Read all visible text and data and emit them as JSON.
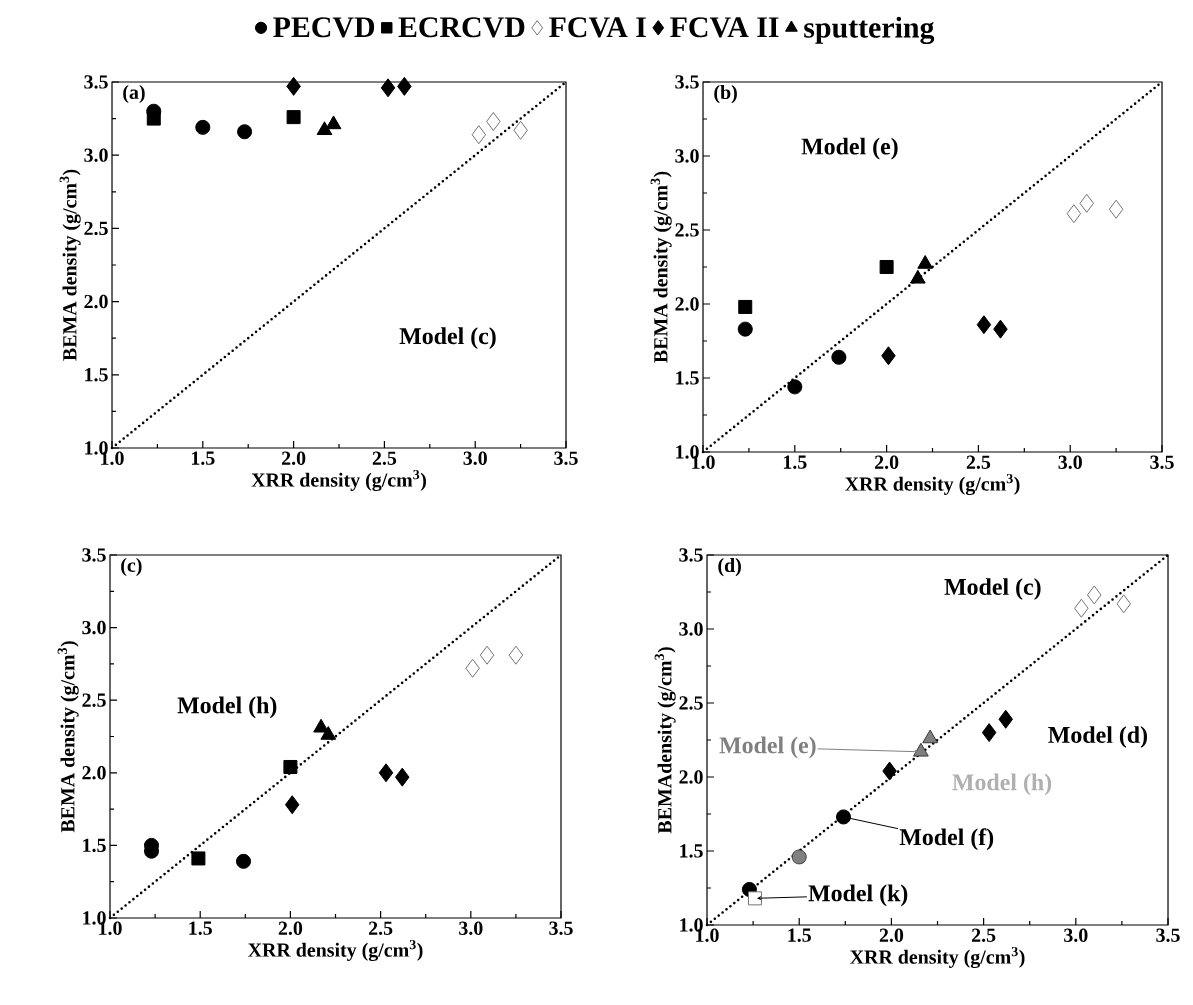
{
  "chart_data": [
    {
      "type": "scatter",
      "title": "(a)",
      "xlabel": "XRR density (g/cm$^{3}$)",
      "ylabel": "BEMA density (g/cm$^{3}$)",
      "xlim": [
        1.0,
        3.5
      ],
      "ylim": [
        1.0,
        3.5
      ],
      "xticks": [
        {
          "value": 1.0,
          "label": "1.0"
        },
        {
          "value": 1.5,
          "label": "1.5"
        },
        {
          "value": 2.0,
          "label": "2.0"
        },
        {
          "value": 2.5,
          "label": "2.5"
        },
        {
          "value": 3.0,
          "label": "3.0"
        },
        {
          "value": 3.5,
          "label": "3.5"
        }
      ],
      "yticks": [
        {
          "value": 1.0,
          "label": "1.0"
        },
        {
          "value": 1.5,
          "label": "1.5"
        },
        {
          "value": 2.0,
          "label": "2.0"
        },
        {
          "value": 2.5,
          "label": "2.5"
        },
        {
          "value": 3.0,
          "label": "3.0"
        },
        {
          "value": 3.5,
          "label": "3.5"
        }
      ],
      "legend": "top",
      "grid": false,
      "series": [
        {
          "name": "PECVD",
          "marker": "circle",
          "color": "#000000",
          "x": [
            1.23,
            1.5,
            1.73
          ],
          "values": [
            3.3,
            3.19,
            3.16
          ]
        },
        {
          "name": "ECRCVD",
          "marker": "square",
          "color": "#000000",
          "x": [
            1.23,
            2.0
          ],
          "values": [
            3.25,
            3.26
          ]
        },
        {
          "name": "FCVA I",
          "marker": "diamond",
          "color": "#ffffff",
          "x": [
            3.02,
            3.1,
            3.25
          ],
          "values": [
            3.14,
            3.23,
            3.17
          ]
        },
        {
          "name": "FCVA II",
          "marker": "diamond",
          "color": "#000000",
          "x": [
            2.0,
            2.52,
            2.61
          ],
          "values": [
            3.47,
            3.46,
            3.47
          ]
        },
        {
          "name": "sputtering",
          "marker": "triangle",
          "color": "#000000",
          "x": [
            2.17,
            2.22
          ],
          "values": [
            3.17,
            3.21
          ]
        },
        {
          "type": "line",
          "line_style": "dotted",
          "color": "#000000",
          "x": [
            1.0,
            3.5
          ],
          "values": [
            1.0,
            3.5
          ]
        }
      ],
      "annotations": [
        "Model (c)"
      ]
    },
    {
      "type": "scatter",
      "title": "(b)",
      "xlabel": "XRR density (g/cm$^{3}$)",
      "ylabel": "BEMA density (g/cm$^{3}$)",
      "xlim": [
        1.0,
        3.5
      ],
      "ylim": [
        1.0,
        3.5
      ],
      "xticks": [
        {
          "value": 1.0,
          "label": "1.0"
        },
        {
          "value": 1.5,
          "label": "1.5"
        },
        {
          "value": 2.0,
          "label": "2.0"
        },
        {
          "value": 2.5,
          "label": "2.5"
        },
        {
          "value": 3.0,
          "label": "3.0"
        },
        {
          "value": 3.5,
          "label": "3.5"
        }
      ],
      "yticks": [
        {
          "value": 1.0,
          "label": "1.0"
        },
        {
          "value": 1.5,
          "label": "1.5"
        },
        {
          "value": 2.0,
          "label": "2.0"
        },
        {
          "value": 2.5,
          "label": "2.5"
        },
        {
          "value": 3.0,
          "label": "3.0"
        },
        {
          "value": 3.5,
          "label": "3.5"
        }
      ],
      "series": [
        {
          "marker": "circle",
          "color": "#000000",
          "x": [
            1.23,
            1.5,
            1.74
          ],
          "values": [
            1.83,
            1.44,
            1.64
          ]
        },
        {
          "marker": "square",
          "color": "#000000",
          "x": [
            1.23,
            2.0
          ],
          "values": [
            1.98,
            2.25
          ]
        },
        {
          "marker": "diamond",
          "color": "#ffffff",
          "x": [
            3.02,
            3.09,
            3.25
          ],
          "values": [
            2.61,
            2.68,
            2.64
          ]
        },
        {
          "marker": "diamond",
          "color": "#000000",
          "x": [
            2.01,
            2.53,
            2.62
          ],
          "values": [
            1.65,
            1.86,
            1.83
          ]
        },
        {
          "marker": "triangle",
          "color": "#000000",
          "x": [
            2.17,
            2.21
          ],
          "values": [
            2.17,
            2.27
          ]
        },
        {
          "type": "line",
          "line_style": "dotted",
          "color": "#000000",
          "x": [
            1.0,
            3.5
          ],
          "values": [
            1.0,
            3.5
          ]
        }
      ],
      "annotations": [
        "Model (e)"
      ]
    },
    {
      "type": "scatter",
      "title": "(c)",
      "xlabel": "XRR density (g/cm$^{3}$)",
      "ylabel": "BEMA density (g/cm$^{3}$)",
      "xlim": [
        1.0,
        3.5
      ],
      "ylim": [
        1.0,
        3.5
      ],
      "xticks": [
        {
          "value": 1.0,
          "label": "1.0"
        },
        {
          "value": 1.5,
          "label": "1.5"
        },
        {
          "value": 2.0,
          "label": "2.0"
        },
        {
          "value": 2.5,
          "label": "2.5"
        },
        {
          "value": 3.0,
          "label": "3.0"
        },
        {
          "value": 3.5,
          "label": "3.5"
        }
      ],
      "yticks": [
        {
          "value": 1.0,
          "label": "1.0"
        },
        {
          "value": 1.5,
          "label": "1.5"
        },
        {
          "value": 2.0,
          "label": "2.0"
        },
        {
          "value": 2.5,
          "label": "2.5"
        },
        {
          "value": 3.0,
          "label": "3.0"
        },
        {
          "value": 3.5,
          "label": "3.5"
        }
      ],
      "series": [
        {
          "marker": "circle",
          "color": "#000000",
          "x": [
            1.23,
            1.23,
            1.74
          ],
          "values": [
            1.5,
            1.46,
            1.39
          ]
        },
        {
          "marker": "square",
          "color": "#000000",
          "x": [
            1.49,
            2.0
          ],
          "values": [
            1.41,
            2.04
          ]
        },
        {
          "marker": "diamond",
          "color": "#ffffff",
          "x": [
            3.01,
            3.09,
            3.25
          ],
          "values": [
            2.72,
            2.81,
            2.81
          ]
        },
        {
          "marker": "diamond",
          "color": "#000000",
          "x": [
            2.01,
            2.53,
            2.62
          ],
          "values": [
            1.78,
            2.0,
            1.97
          ]
        },
        {
          "marker": "triangle",
          "color": "#000000",
          "x": [
            2.17,
            2.21
          ],
          "values": [
            2.31,
            2.26
          ]
        },
        {
          "type": "line",
          "line_style": "dotted",
          "color": "#000000",
          "x": [
            1.0,
            3.5
          ],
          "values": [
            1.0,
            3.5
          ]
        }
      ],
      "annotations": [
        "Model (h)"
      ]
    },
    {
      "type": "scatter",
      "title": "(d)",
      "xlabel": "XRR density (g/cm$^{3}$)",
      "ylabel": "BEMAdensity (g/cm$^{3}$)",
      "xlim": [
        1.0,
        3.5
      ],
      "ylim": [
        1.0,
        3.5
      ],
      "xticks": [
        {
          "value": 1.0,
          "label": "1.0"
        },
        {
          "value": 1.5,
          "label": "1.5"
        },
        {
          "value": 2.0,
          "label": "2.0"
        },
        {
          "value": 2.5,
          "label": "2.5"
        },
        {
          "value": 3.0,
          "label": "3.0"
        },
        {
          "value": 3.5,
          "label": "3.5"
        }
      ],
      "yticks": [
        {
          "value": 1.0,
          "label": "1.0"
        },
        {
          "value": 1.5,
          "label": "1.5"
        },
        {
          "value": 2.0,
          "label": "2.0"
        },
        {
          "value": 2.5,
          "label": "2.5"
        },
        {
          "value": 3.0,
          "label": "3.0"
        },
        {
          "value": 3.5,
          "label": "3.5"
        }
      ],
      "series": [
        {
          "marker": "circle",
          "colors": [
            "#000000",
            "#808080",
            "#000000"
          ],
          "x": [
            1.23,
            1.5,
            1.74
          ],
          "values": [
            1.24,
            1.46,
            1.73
          ]
        },
        {
          "marker": "square",
          "color": "#ffffff",
          "x": [
            1.26
          ],
          "values": [
            1.18
          ]
        },
        {
          "marker": "diamond",
          "color": "#ffffff",
          "x": [
            3.03,
            3.1,
            3.26
          ],
          "values": [
            3.14,
            3.23,
            3.17
          ]
        },
        {
          "marker": "diamond",
          "color": "#000000",
          "x": [
            1.99,
            2.53,
            2.62
          ],
          "values": [
            2.04,
            2.3,
            2.39
          ]
        },
        {
          "marker": "triangle",
          "color": "#808080",
          "x": [
            2.16,
            2.21
          ],
          "values": [
            2.17,
            2.26
          ]
        },
        {
          "type": "line",
          "line_style": "dotted",
          "color": "#000000",
          "x": [
            1.0,
            3.5
          ],
          "values": [
            1.0,
            3.5
          ]
        }
      ],
      "annotations": [
        "Model (c)",
        "Model (d)",
        {
          "text": "Model (e)",
          "x": 2.16,
          "y": 2.17
        },
        "Model (h)",
        {
          "text": "Model (f)",
          "x": 1.74,
          "y": 1.73
        },
        {
          "text": "Model (k)",
          "x": 1.26,
          "y": 1.18
        }
      ]
    }
  ]
}
